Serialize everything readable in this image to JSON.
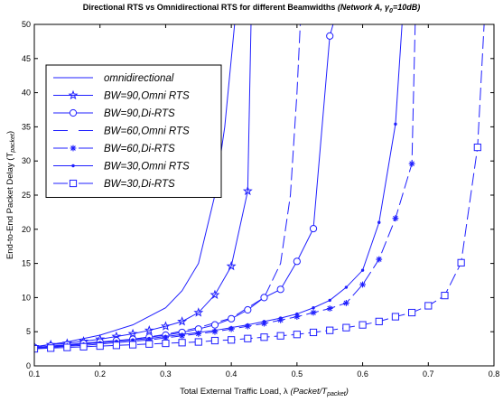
{
  "chart_data": {
    "type": "line",
    "title": "Directional RTS vs Omnidirectional RTS for different Beamwidths",
    "subtitle": {
      "prefix": "(Network A, ",
      "gamma": "γ",
      "gamma_sub": "0",
      "suffix": "=10dB)"
    },
    "xlabel": {
      "text": "Total External Traffic Load, λ",
      "unit_prefix": "(Packet/T",
      "unit_sub": "packet",
      "unit_suffix": ")"
    },
    "ylabel": {
      "text": "End-to-End Packet Delay (T",
      "sub": "packet",
      "suffix": ")"
    },
    "xlim": [
      0.1,
      0.8
    ],
    "ylim": [
      0,
      50
    ],
    "xticks": [
      "0.1",
      "0.2",
      "0.3",
      "0.4",
      "0.5",
      "0.6",
      "0.7",
      "0.8"
    ],
    "yticks": [
      "0",
      "5",
      "10",
      "15",
      "20",
      "25",
      "30",
      "35",
      "40",
      "45",
      "50"
    ],
    "grid": false,
    "legend_position": "upper-left",
    "series": [
      {
        "name": "omnidirectional",
        "dash": "solid",
        "marker": "none",
        "x": [
          0.1,
          0.15,
          0.2,
          0.25,
          0.3,
          0.325,
          0.35,
          0.375,
          0.39,
          0.4,
          0.405
        ],
        "y": [
          2.8,
          3.5,
          4.5,
          6.0,
          8.5,
          11,
          15,
          25,
          35,
          45,
          50
        ]
      },
      {
        "name": "BW=90,Omni RTS",
        "dash": "solid",
        "marker": "star",
        "x": [
          0.1,
          0.125,
          0.15,
          0.175,
          0.2,
          0.225,
          0.25,
          0.275,
          0.3,
          0.325,
          0.35,
          0.375,
          0.4,
          0.425,
          0.43
        ],
        "y": [
          2.8,
          3.1,
          3.3,
          3.6,
          3.9,
          4.3,
          4.7,
          5.2,
          5.8,
          6.5,
          7.8,
          10.4,
          14.6,
          25.6,
          50
        ]
      },
      {
        "name": "BW=90,Di-RTS",
        "dash": "solid",
        "marker": "circle",
        "x": [
          0.1,
          0.125,
          0.15,
          0.175,
          0.2,
          0.225,
          0.25,
          0.275,
          0.3,
          0.325,
          0.35,
          0.375,
          0.4,
          0.425,
          0.45,
          0.475,
          0.5,
          0.525,
          0.55,
          0.555
        ],
        "y": [
          2.7,
          2.9,
          3.1,
          3.3,
          3.5,
          3.7,
          3.9,
          4.2,
          4.5,
          4.9,
          5.4,
          6.0,
          6.9,
          8.2,
          10.0,
          11.2,
          15.3,
          20.1,
          48.3,
          50
        ]
      },
      {
        "name": "BW=60,Omni RTS",
        "dash": "dashed",
        "marker": "none",
        "x": [
          0.1,
          0.15,
          0.2,
          0.25,
          0.3,
          0.35,
          0.4,
          0.45,
          0.475,
          0.49,
          0.5,
          0.505
        ],
        "y": [
          2.6,
          3.0,
          3.4,
          3.9,
          4.6,
          5.6,
          7.0,
          10.0,
          15.0,
          25.0,
          40.0,
          50
        ]
      },
      {
        "name": "BW=60,Di-RTS",
        "dash": "dashed",
        "marker": "asterisk",
        "x": [
          0.1,
          0.125,
          0.15,
          0.175,
          0.2,
          0.225,
          0.25,
          0.275,
          0.3,
          0.325,
          0.35,
          0.375,
          0.4,
          0.425,
          0.45,
          0.475,
          0.5,
          0.525,
          0.55,
          0.575,
          0.6,
          0.625,
          0.65,
          0.675,
          0.68
        ],
        "y": [
          2.6,
          2.7,
          2.9,
          3.0,
          3.2,
          3.4,
          3.6,
          3.8,
          4.1,
          4.4,
          4.7,
          5.0,
          5.4,
          5.8,
          6.2,
          6.7,
          7.2,
          7.8,
          8.4,
          9.2,
          11.9,
          15.6,
          21.6,
          29.6,
          50
        ]
      },
      {
        "name": "BW=30,Omni RTS",
        "dash": "solid",
        "marker": "dot",
        "x": [
          0.1,
          0.125,
          0.15,
          0.175,
          0.2,
          0.225,
          0.25,
          0.275,
          0.3,
          0.325,
          0.35,
          0.375,
          0.4,
          0.425,
          0.45,
          0.475,
          0.5,
          0.525,
          0.55,
          0.575,
          0.6,
          0.625,
          0.65,
          0.66
        ],
        "y": [
          2.6,
          2.8,
          3.0,
          3.2,
          3.4,
          3.6,
          3.8,
          4.0,
          4.3,
          4.6,
          4.9,
          5.2,
          5.6,
          6.0,
          6.5,
          7.0,
          7.6,
          8.5,
          9.6,
          11.5,
          14.0,
          21.0,
          35.4,
          50
        ]
      },
      {
        "name": "BW=30,Di-RTS",
        "dash": "dashed",
        "marker": "square",
        "x": [
          0.1,
          0.125,
          0.15,
          0.175,
          0.2,
          0.225,
          0.25,
          0.275,
          0.3,
          0.325,
          0.35,
          0.375,
          0.4,
          0.425,
          0.45,
          0.475,
          0.5,
          0.525,
          0.55,
          0.575,
          0.6,
          0.625,
          0.65,
          0.675,
          0.7,
          0.725,
          0.75,
          0.775,
          0.785
        ],
        "y": [
          2.5,
          2.6,
          2.7,
          2.8,
          2.9,
          3.0,
          3.1,
          3.2,
          3.3,
          3.4,
          3.5,
          3.7,
          3.8,
          4.0,
          4.2,
          4.4,
          4.6,
          4.9,
          5.2,
          5.6,
          6.0,
          6.5,
          7.2,
          7.8,
          8.8,
          10.3,
          15.1,
          32.0,
          50
        ]
      }
    ]
  },
  "colors": {
    "series": "#1f1fff",
    "axes": "#000000",
    "background": "#ffffff"
  }
}
